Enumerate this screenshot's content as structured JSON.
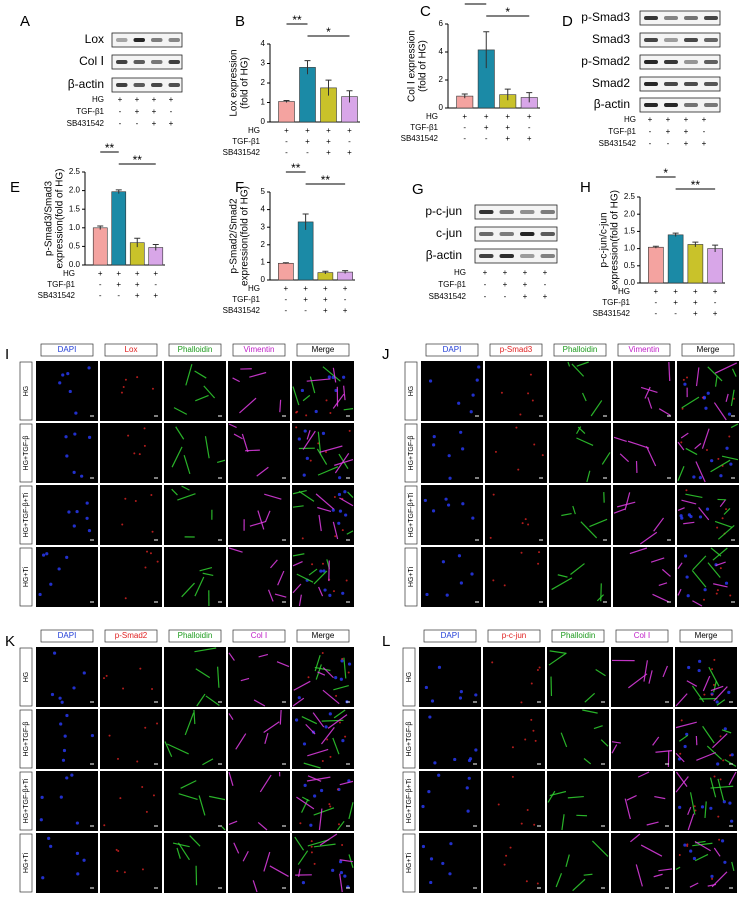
{
  "blots": [
    {
      "letter": "A",
      "proteins": [
        "Lox",
        "Col Ⅰ",
        "β-actin"
      ],
      "treatments": [
        {
          "name": "HG",
          "signs": [
            "+",
            "+",
            "+",
            "+"
          ]
        },
        {
          "name": "TGF-β1",
          "signs": [
            "-",
            "+",
            "+",
            "-"
          ]
        },
        {
          "name": "SB431542",
          "signs": [
            "-",
            "-",
            "+",
            "+"
          ]
        }
      ]
    },
    {
      "letter": "D",
      "proteins": [
        "p-Smad3",
        "Smad3",
        "p-Smad2",
        "Smad2",
        "β-actin"
      ],
      "treatments": [
        {
          "name": "HG",
          "signs": [
            "+",
            "+",
            "+",
            "+"
          ]
        },
        {
          "name": "TGF-β1",
          "signs": [
            "-",
            "+",
            "+",
            "-"
          ]
        },
        {
          "name": "SB431542",
          "signs": [
            "-",
            "-",
            "+",
            "+"
          ]
        }
      ]
    },
    {
      "letter": "G",
      "proteins": [
        "p-c-jun",
        "c-jun",
        "β-actin"
      ],
      "treatments": [
        {
          "name": "HG",
          "signs": [
            "+",
            "+",
            "+",
            "+"
          ]
        },
        {
          "name": "TGF-β1",
          "signs": [
            "-",
            "+",
            "+",
            "-"
          ]
        },
        {
          "name": "SB431542",
          "signs": [
            "-",
            "-",
            "+",
            "+"
          ]
        }
      ]
    }
  ],
  "chart_data": [
    {
      "type": "bar",
      "letter": "B",
      "ylabel": [
        "Lox expression",
        "(fold of HG)"
      ],
      "values": [
        1.05,
        2.8,
        1.75,
        1.3
      ],
      "errors": [
        0.05,
        0.35,
        0.4,
        0.3
      ],
      "colors": [
        "#f4a3a0",
        "#1b8aa6",
        "#c9c22a",
        "#d8a6e8"
      ],
      "ylim": [
        0,
        4
      ],
      "yticks": [
        0,
        1,
        2,
        3,
        4
      ],
      "significance": [
        {
          "label": "**",
          "from": 0,
          "to": 1
        },
        {
          "label": "*",
          "from": 1,
          "to": 3
        }
      ],
      "treatments": [
        {
          "name": "HG",
          "signs": [
            "+",
            "+",
            "+",
            "+"
          ]
        },
        {
          "name": "TGF-β1",
          "signs": [
            "-",
            "+",
            "+",
            "-"
          ]
        },
        {
          "name": "SB431542",
          "signs": [
            "-",
            "-",
            "+",
            "+"
          ]
        }
      ]
    },
    {
      "type": "bar",
      "letter": "C",
      "ylabel": [
        "Col Ⅰ expression",
        "(fold of HG)"
      ],
      "values": [
        0.85,
        4.15,
        0.95,
        0.75
      ],
      "errors": [
        0.15,
        1.3,
        0.4,
        0.35
      ],
      "colors": [
        "#f4a3a0",
        "#1b8aa6",
        "#c9c22a",
        "#d8a6e8"
      ],
      "ylim": [
        0,
        6
      ],
      "yticks": [
        0,
        2,
        4,
        6
      ],
      "significance": [
        {
          "label": "*",
          "from": 0,
          "to": 1
        },
        {
          "label": "*",
          "from": 1,
          "to": 3
        }
      ],
      "treatments": [
        {
          "name": "HG",
          "signs": [
            "+",
            "+",
            "+",
            "+"
          ]
        },
        {
          "name": "TGF-β1",
          "signs": [
            "-",
            "+",
            "+",
            "-"
          ]
        },
        {
          "name": "SB431542",
          "signs": [
            "-",
            "-",
            "+",
            "+"
          ]
        }
      ]
    },
    {
      "type": "bar",
      "letter": "E",
      "ylabel": [
        "p-Smad3/Smad3",
        "expression(fold of HG)"
      ],
      "values": [
        1.0,
        1.97,
        0.6,
        0.47
      ],
      "errors": [
        0.05,
        0.05,
        0.12,
        0.08
      ],
      "colors": [
        "#f4a3a0",
        "#1b8aa6",
        "#c9c22a",
        "#d8a6e8"
      ],
      "ylim": [
        0,
        2.5
      ],
      "yticks": [
        {
          "value": 0,
          "label": "0.0"
        },
        0.5,
        {
          "value": 1,
          "label": "1.0"
        },
        1.5,
        {
          "value": 2,
          "label": "2.0"
        },
        2.5
      ],
      "significance": [
        {
          "label": "**",
          "from": 0,
          "to": 1
        },
        {
          "label": "**",
          "from": 1,
          "to": 3
        }
      ],
      "treatments": [
        {
          "name": "HG",
          "signs": [
            "+",
            "+",
            "+",
            "+"
          ]
        },
        {
          "name": "TGF-β1",
          "signs": [
            "-",
            "+",
            "+",
            "-"
          ]
        },
        {
          "name": "SB431542",
          "signs": [
            "-",
            "-",
            "+",
            "+"
          ]
        }
      ]
    },
    {
      "type": "bar",
      "letter": "F",
      "ylabel": [
        "p-Smad2/Smad2",
        "expression(fold of HG)"
      ],
      "values": [
        0.95,
        3.3,
        0.42,
        0.45
      ],
      "errors": [
        0.03,
        0.45,
        0.08,
        0.08
      ],
      "colors": [
        "#f4a3a0",
        "#1b8aa6",
        "#c9c22a",
        "#d8a6e8"
      ],
      "ylim": [
        0,
        5
      ],
      "yticks": [
        0,
        1,
        2,
        3,
        4,
        5
      ],
      "significance": [
        {
          "label": "**",
          "from": 0,
          "to": 1
        },
        {
          "label": "**",
          "from": 1,
          "to": 3
        }
      ],
      "treatments": [
        {
          "name": "HG",
          "signs": [
            "+",
            "+",
            "+",
            "+"
          ]
        },
        {
          "name": "TGF-β1",
          "signs": [
            "-",
            "+",
            "+",
            "-"
          ]
        },
        {
          "name": "SB431542",
          "signs": [
            "-",
            "-",
            "+",
            "+"
          ]
        }
      ]
    },
    {
      "type": "bar",
      "letter": "H",
      "ylabel": [
        "p-c-jun/c-jun",
        "expression(fold of HG)"
      ],
      "values": [
        1.04,
        1.4,
        1.12,
        1.0
      ],
      "errors": [
        0.03,
        0.05,
        0.07,
        0.1
      ],
      "colors": [
        "#f4a3a0",
        "#1b8aa6",
        "#c9c22a",
        "#d8a6e8"
      ],
      "ylim": [
        0,
        2.5
      ],
      "yticks": [
        {
          "value": 0,
          "label": "0.0"
        },
        0.5,
        {
          "value": 1,
          "label": "1.0"
        },
        1.5,
        {
          "value": 2,
          "label": "2.0"
        },
        2.5
      ],
      "significance": [
        {
          "label": "*",
          "from": 0,
          "to": 1
        },
        {
          "label": "**",
          "from": 1,
          "to": 3
        }
      ],
      "treatments": [
        {
          "name": "HG",
          "signs": [
            "+",
            "+",
            "+",
            "+"
          ]
        },
        {
          "name": "TGF-β1",
          "signs": [
            "-",
            "+",
            "+",
            "-"
          ]
        },
        {
          "name": "SB431542",
          "signs": [
            "-",
            "-",
            "+",
            "+"
          ]
        }
      ]
    }
  ],
  "microscopy": [
    {
      "letter": "I",
      "channels": [
        "DAPI",
        "Lox",
        "Phalloidin",
        "Vimentin",
        "Merge"
      ],
      "conditions": [
        "HG",
        "HG+TGF-β",
        "HG+TGF-β+Ti",
        "HG+Ti"
      ]
    },
    {
      "letter": "J",
      "channels": [
        "DAPI",
        "p-Smad3",
        "Phalloidin",
        "Vimentin",
        "Merge"
      ],
      "conditions": [
        "HG",
        "HG+TGF-β",
        "HG+TGF-β+Ti",
        "HG+Ti"
      ]
    },
    {
      "letter": "K",
      "channels": [
        "DAPI",
        "p-Smad2",
        "Phalloidin",
        "Col Ⅰ",
        "Merge"
      ],
      "conditions": [
        "HG",
        "HG+TGF-β",
        "HG+TGF-β+Ti",
        "HG+Ti"
      ]
    },
    {
      "letter": "L",
      "channels": [
        "DAPI",
        "p-c-jun",
        "Phalloidin",
        "Col Ⅰ",
        "Merge"
      ],
      "conditions": [
        "HG",
        "HG+TGF-β",
        "HG+TGF-β+Ti",
        "HG+Ti"
      ]
    }
  ]
}
